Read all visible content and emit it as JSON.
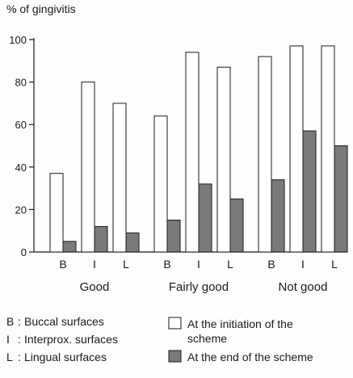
{
  "chart_data": {
    "type": "bar",
    "ylabel": "% of gingivitis",
    "ylim": [
      0,
      100
    ],
    "yticks": [
      0,
      20,
      40,
      60,
      80,
      100
    ],
    "groups": [
      {
        "label": "Good",
        "categories": [
          "B",
          "I",
          "L"
        ]
      },
      {
        "label": "Fairly good",
        "categories": [
          "B",
          "I",
          "L"
        ]
      },
      {
        "label": "Not good",
        "categories": [
          "B",
          "I",
          "L"
        ]
      }
    ],
    "series": [
      {
        "name": "At the initiation of the scheme",
        "color": "#ffffff",
        "values": [
          37,
          80,
          70,
          64,
          94,
          87,
          92,
          97,
          97
        ]
      },
      {
        "name": "At the end of the scheme",
        "color": "#7a7a7a",
        "values": [
          5,
          12,
          9,
          15,
          32,
          25,
          34,
          57,
          50
        ]
      }
    ],
    "key": [
      {
        "code": "B",
        "text": "Buccal surfaces"
      },
      {
        "code": "I",
        "text": "Interprox. surfaces"
      },
      {
        "code": "L",
        "text": "Lingual surfaces"
      }
    ],
    "legend_lines": [
      [
        "At the initiation of the",
        "scheme"
      ],
      [
        "At the end of the scheme"
      ]
    ]
  }
}
